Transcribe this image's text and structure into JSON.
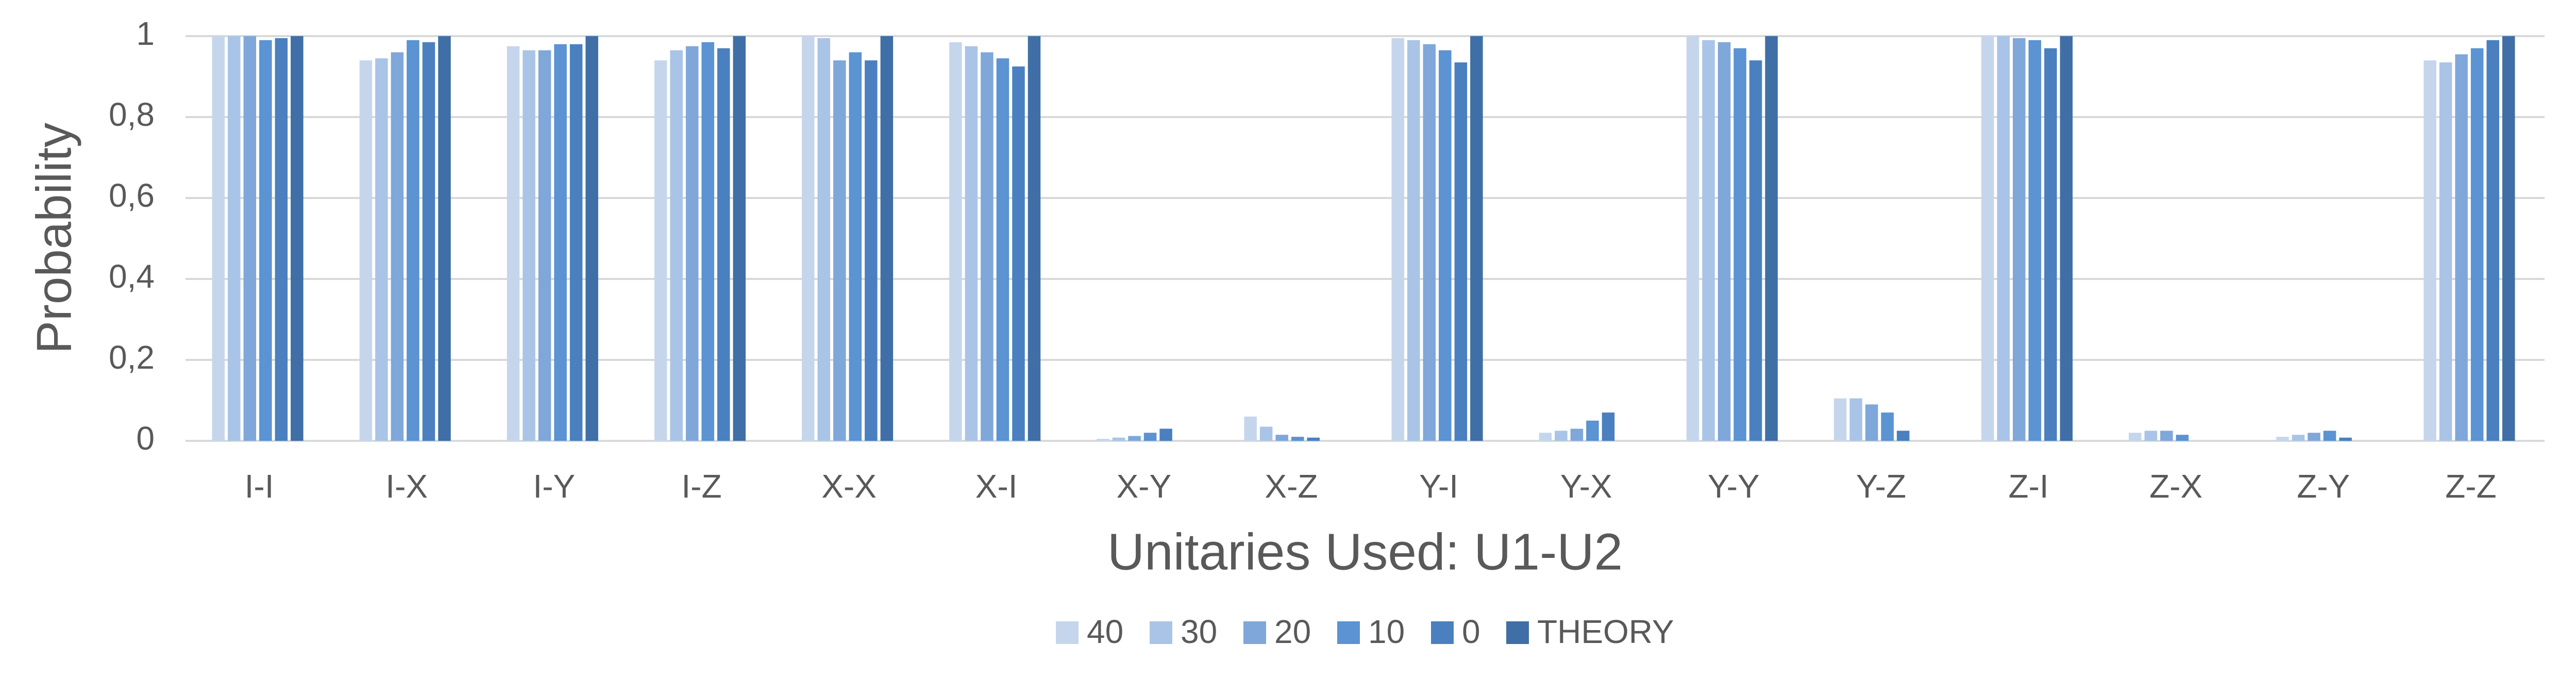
{
  "chart_data": {
    "type": "bar",
    "y_label": "Probability",
    "x_label": "Unitaries Used: U1-U2",
    "categories": [
      "I-I",
      "I-X",
      "I-Y",
      "I-Z",
      "X-X",
      "X-I",
      "X-Y",
      "X-Z",
      "Y-I",
      "Y-X",
      "Y-Y",
      "Y-Z",
      "Z-I",
      "Z-X",
      "Z-Y",
      "Z-Z"
    ],
    "series": [
      {
        "name": "40",
        "color": "#c5d6ec",
        "values": [
          1,
          0.94,
          0.975,
          0.94,
          1,
          0.985,
          0.005,
          0.06,
          0.995,
          0.02,
          1,
          0.105,
          1,
          0.02,
          0.01,
          0.94
        ]
      },
      {
        "name": "30",
        "color": "#a9c4e6",
        "values": [
          1,
          0.945,
          0.965,
          0.965,
          0.995,
          0.975,
          0.008,
          0.035,
          0.99,
          0.025,
          0.99,
          0.105,
          1,
          0.025,
          0.015,
          0.935
        ]
      },
      {
        "name": "20",
        "color": "#7fa7d9",
        "values": [
          1,
          0.96,
          0.965,
          0.975,
          0.94,
          0.96,
          0.012,
          0.015,
          0.98,
          0.03,
          0.985,
          0.09,
          0.995,
          0.025,
          0.02,
          0.955
        ]
      },
      {
        "name": "10",
        "color": "#5b93d3",
        "values": [
          0.99,
          0.99,
          0.98,
          0.985,
          0.96,
          0.945,
          0.02,
          0.01,
          0.965,
          0.05,
          0.97,
          0.07,
          0.99,
          0.015,
          0.025,
          0.97
        ]
      },
      {
        "name": "0",
        "color": "#4a80bf",
        "values": [
          0.995,
          0.985,
          0.98,
          0.97,
          0.94,
          0.925,
          0.03,
          0.008,
          0.935,
          0.07,
          0.94,
          0.025,
          0.97,
          0,
          0.008,
          0.99
        ]
      },
      {
        "name": "THEORY",
        "color": "#3f6fa6",
        "values": [
          1,
          1,
          1,
          1,
          1,
          1,
          0,
          0,
          1,
          0,
          1,
          0,
          1,
          0,
          0,
          1
        ]
      }
    ],
    "ylim": [
      0,
      1
    ],
    "yticks": [
      0,
      {
        "value": 0.2,
        "label": "0,2"
      },
      {
        "value": 0.4,
        "label": "0,4"
      },
      {
        "value": 0.6,
        "label": "0,6"
      },
      {
        "value": 0.8,
        "label": "0,8"
      },
      1
    ],
    "grid": true,
    "legend": "bottom"
  }
}
